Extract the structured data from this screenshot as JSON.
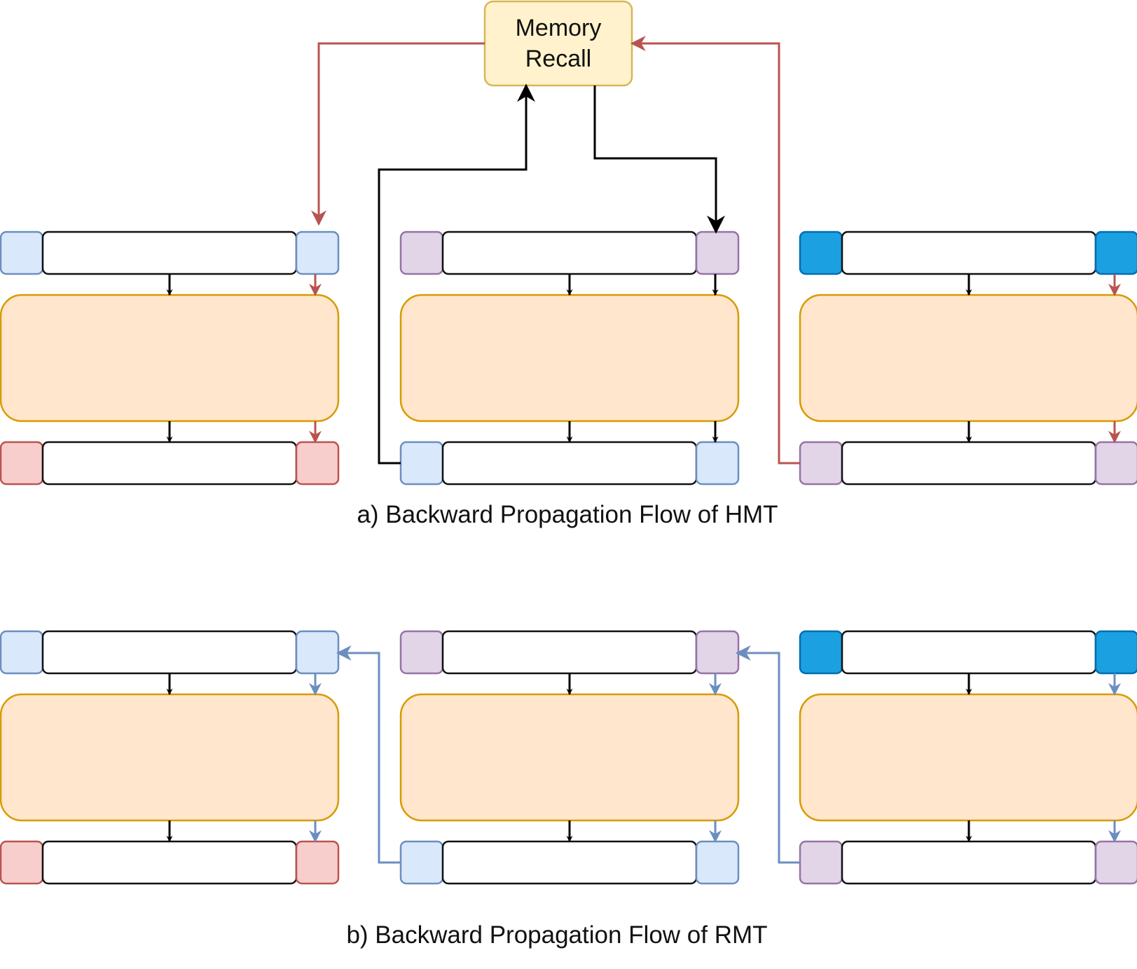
{
  "memory_recall": {
    "line1": "Memory",
    "line2": "Recall",
    "fill": "#fff2cc",
    "stroke": "#d6b656"
  },
  "captions": {
    "a": "a) Backward Propagation Flow of HMT",
    "b": "b) Backward Propagation Flow of RMT"
  },
  "colors": {
    "light_blue": "#dae8fc",
    "light_blue_stroke": "#6c8ebf",
    "purple": "#e1d5e7",
    "purple_stroke": "#9673a6",
    "dark_blue": "#1ba1e2",
    "dark_blue_stroke": "#006eaf",
    "red": "#f8cecc",
    "red_stroke": "#b85450",
    "segment_fill": "#ffe6cc",
    "segment_stroke": "#d79b00",
    "hmt_flow": "#b85450",
    "rmt_flow": "#6c8ebf",
    "forward_flow": "#000000"
  },
  "panels": [
    {
      "id": "hmt",
      "segments": [
        {
          "top_memory": "light_blue",
          "bottom_memory": "red"
        },
        {
          "top_memory": "purple",
          "bottom_memory": "light_blue"
        },
        {
          "top_memory": "dark_blue",
          "bottom_memory": "purple"
        }
      ]
    },
    {
      "id": "rmt",
      "segments": [
        {
          "top_memory": "light_blue",
          "bottom_memory": "red"
        },
        {
          "top_memory": "purple",
          "bottom_memory": "light_blue"
        },
        {
          "top_memory": "dark_blue",
          "bottom_memory": "purple"
        }
      ]
    }
  ]
}
